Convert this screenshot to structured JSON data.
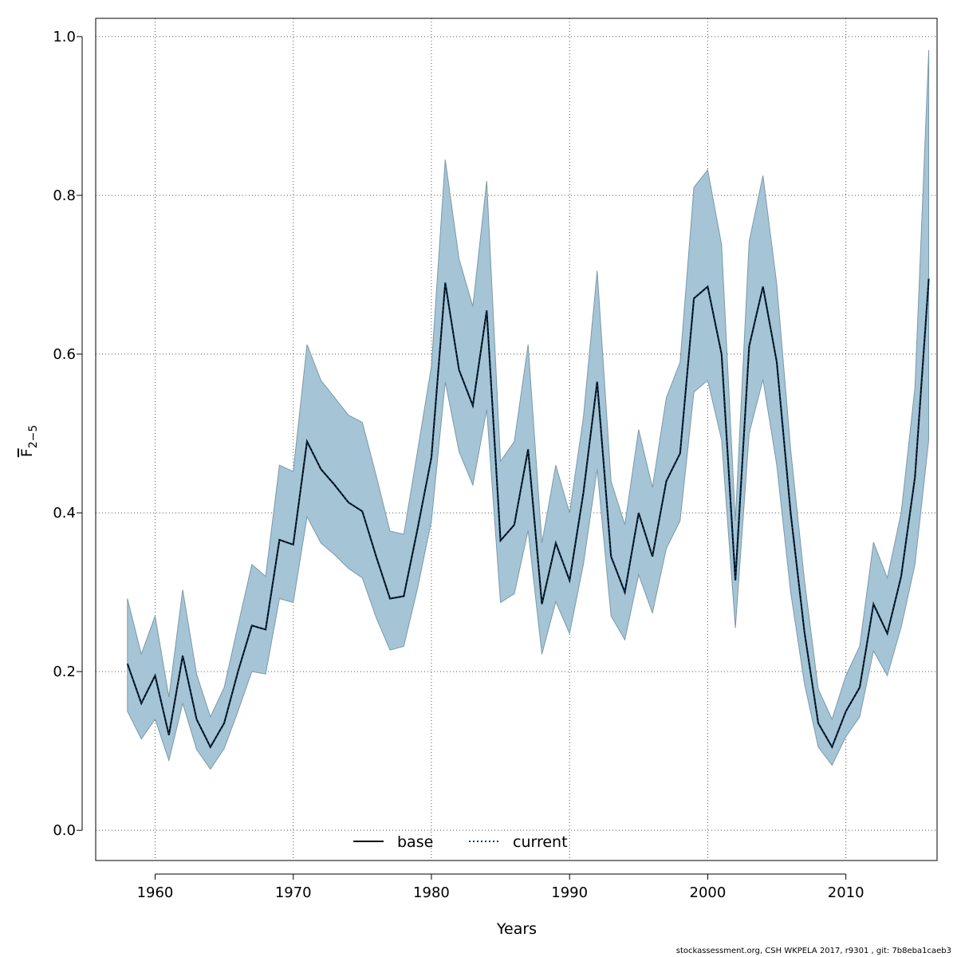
{
  "chart_data": {
    "type": "line",
    "xlabel": "Years",
    "ylabel": {
      "base": "F",
      "subscript": "2−5"
    },
    "xlim": [
      1955.7,
      2016.6
    ],
    "ylim": [
      -0.038,
      1.023
    ],
    "xticks": [
      1960,
      1970,
      1980,
      1990,
      2000,
      2010
    ],
    "yticks": [
      0.0,
      0.2,
      0.4,
      0.6,
      0.8,
      1.0
    ],
    "ytick_labels": [
      "0.0",
      "0.2",
      "0.4",
      "0.6",
      "0.8",
      "1.0"
    ],
    "grid": true,
    "band_color": "#a5c4d5",
    "line_color": "#003a66",
    "x": [
      1958,
      1959,
      1960,
      1961,
      1962,
      1963,
      1964,
      1965,
      1966,
      1967,
      1968,
      1969,
      1970,
      1971,
      1972,
      1973,
      1974,
      1975,
      1976,
      1977,
      1978,
      1979,
      1980,
      1981,
      1982,
      1983,
      1984,
      1985,
      1986,
      1987,
      1988,
      1989,
      1990,
      1991,
      1992,
      1993,
      1994,
      1995,
      1996,
      1997,
      1998,
      1999,
      2000,
      2001,
      2002,
      2003,
      2004,
      2005,
      2006,
      2007,
      2008,
      2009,
      2010,
      2011,
      2012,
      2013,
      2014,
      2015,
      2016
    ],
    "series": [
      {
        "name": "base",
        "style": "solid",
        "values": [
          0.21,
          0.16,
          0.195,
          0.12,
          0.22,
          0.14,
          0.105,
          0.135,
          0.2,
          0.258,
          0.253,
          0.366,
          0.36,
          0.49,
          0.455,
          0.435,
          0.413,
          0.402,
          0.345,
          0.292,
          0.295,
          0.38,
          0.47,
          0.69,
          0.58,
          0.535,
          0.655,
          0.365,
          0.385,
          0.48,
          0.285,
          0.362,
          0.315,
          0.425,
          0.565,
          0.345,
          0.3,
          0.4,
          0.345,
          0.44,
          0.475,
          0.67,
          0.685,
          0.6,
          0.315,
          0.61,
          0.685,
          0.59,
          0.4,
          0.25,
          0.135,
          0.105,
          0.15,
          0.18,
          0.285,
          0.248,
          0.32,
          0.445,
          0.695
        ]
      },
      {
        "name": "current",
        "style": "dotted",
        "values": [
          0.21,
          0.16,
          0.195,
          0.12,
          0.22,
          0.14,
          0.105,
          0.135,
          0.2,
          0.258,
          0.253,
          0.366,
          0.36,
          0.49,
          0.455,
          0.435,
          0.413,
          0.402,
          0.345,
          0.292,
          0.295,
          0.38,
          0.47,
          0.69,
          0.58,
          0.535,
          0.655,
          0.365,
          0.385,
          0.48,
          0.285,
          0.362,
          0.315,
          0.425,
          0.565,
          0.345,
          0.3,
          0.4,
          0.345,
          0.44,
          0.475,
          0.67,
          0.685,
          0.6,
          0.315,
          0.61,
          0.685,
          0.59,
          0.4,
          0.25,
          0.135,
          0.105,
          0.15,
          0.18,
          0.285,
          0.248,
          0.32,
          0.445,
          0.695
        ]
      }
    ],
    "band": {
      "lower": [
        0.15,
        0.115,
        0.14,
        0.088,
        0.16,
        0.102,
        0.077,
        0.103,
        0.15,
        0.2,
        0.197,
        0.292,
        0.287,
        0.395,
        0.362,
        0.347,
        0.33,
        0.318,
        0.268,
        0.227,
        0.232,
        0.305,
        0.39,
        0.565,
        0.477,
        0.435,
        0.53,
        0.287,
        0.298,
        0.378,
        0.222,
        0.288,
        0.248,
        0.335,
        0.455,
        0.27,
        0.24,
        0.322,
        0.274,
        0.355,
        0.39,
        0.552,
        0.567,
        0.492,
        0.255,
        0.5,
        0.568,
        0.46,
        0.3,
        0.185,
        0.105,
        0.082,
        0.118,
        0.143,
        0.226,
        0.195,
        0.256,
        0.335,
        0.492
      ],
      "upper": [
        0.292,
        0.222,
        0.27,
        0.168,
        0.303,
        0.197,
        0.143,
        0.18,
        0.258,
        0.335,
        0.32,
        0.46,
        0.452,
        0.612,
        0.567,
        0.545,
        0.523,
        0.514,
        0.447,
        0.377,
        0.373,
        0.478,
        0.585,
        0.845,
        0.72,
        0.66,
        0.818,
        0.465,
        0.49,
        0.612,
        0.362,
        0.46,
        0.4,
        0.52,
        0.705,
        0.44,
        0.385,
        0.505,
        0.432,
        0.545,
        0.59,
        0.81,
        0.832,
        0.738,
        0.39,
        0.742,
        0.825,
        0.688,
        0.48,
        0.315,
        0.178,
        0.14,
        0.195,
        0.232,
        0.363,
        0.318,
        0.4,
        0.558,
        0.983
      ]
    },
    "legend": {
      "position": "bottom-center",
      "entries": [
        "base",
        "current"
      ]
    }
  },
  "footer": "stockassessment.org, CSH  WKPELA  2017, r9301 , git: 7b8eba1caeb3"
}
